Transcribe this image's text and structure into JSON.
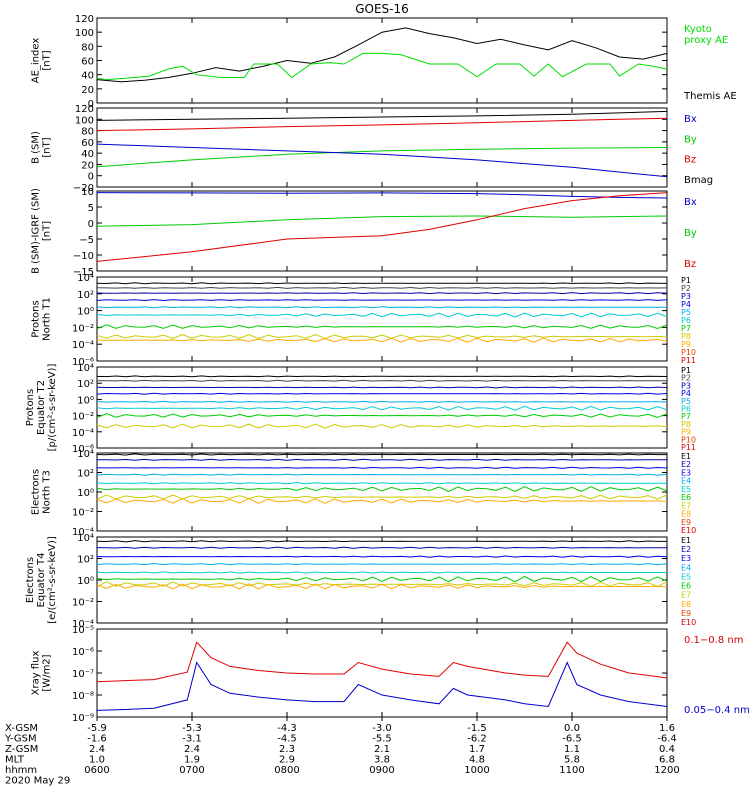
{
  "title": "GOES-16",
  "chart_data": [
    {
      "type": "line",
      "ylabel": "AE_index\n[nT]",
      "ylim": [
        0,
        120
      ],
      "yticks": [
        "0",
        "20",
        "40",
        "60",
        "80",
        "100",
        "120"
      ],
      "legend": [
        {
          "text": "Kyoto\nproxy AE",
          "color": "#00dd00"
        },
        {
          "text": "Themis AE",
          "color": "#000000"
        }
      ],
      "series": [
        {
          "name": "Themis AE",
          "color": "#000000",
          "x": [
            6.0,
            6.25,
            6.5,
            6.75,
            7.0,
            7.25,
            7.5,
            7.75,
            8.0,
            8.25,
            8.5,
            8.75,
            9.0,
            9.25,
            9.5,
            9.75,
            10.0,
            10.25,
            10.5,
            10.75,
            11.0,
            11.25,
            11.5,
            11.75,
            12.0
          ],
          "y": [
            33,
            30,
            32,
            36,
            42,
            50,
            45,
            52,
            60,
            56,
            65,
            82,
            100,
            106,
            98,
            92,
            84,
            90,
            82,
            75,
            88,
            78,
            65,
            62,
            70
          ]
        },
        {
          "name": "Kyoto proxy AE",
          "color": "#00dd00",
          "x": [
            6.0,
            6.1,
            6.3,
            6.55,
            6.75,
            6.9,
            7.05,
            7.3,
            7.55,
            7.65,
            7.9,
            8.05,
            8.25,
            8.45,
            8.6,
            8.8,
            9.0,
            9.2,
            9.5,
            9.8,
            10.0,
            10.2,
            10.45,
            10.6,
            10.75,
            10.9,
            11.15,
            11.4,
            11.5,
            11.7,
            11.85,
            12.0
          ],
          "y": [
            35,
            33,
            35,
            38,
            48,
            52,
            40,
            36,
            36,
            55,
            55,
            36,
            55,
            57,
            55,
            70,
            70,
            68,
            55,
            55,
            37,
            55,
            55,
            38,
            55,
            37,
            55,
            55,
            38,
            55,
            52,
            48
          ]
        }
      ]
    },
    {
      "type": "line",
      "ylabel": "B (SM)\n[nT]",
      "ylim": [
        -20,
        120
      ],
      "yticks": [
        "−20",
        "0",
        "20",
        "40",
        "60",
        "80",
        "100",
        "120"
      ],
      "legend": [
        {
          "text": "Bx",
          "color": "#0000cc"
        },
        {
          "text": "By",
          "color": "#00cc00"
        },
        {
          "text": "Bz",
          "color": "#dd0000"
        },
        {
          "text": "Bmag",
          "color": "#000000"
        }
      ],
      "series": [
        {
          "name": "Bmag",
          "color": "#000000",
          "x": [
            6,
            7,
            8,
            9,
            10,
            11,
            12
          ],
          "y": [
            98,
            100,
            102,
            104,
            106,
            109,
            114
          ]
        },
        {
          "name": "Bz",
          "color": "#dd0000",
          "x": [
            6,
            7,
            8,
            9,
            10,
            11,
            12
          ],
          "y": [
            80,
            83,
            87,
            90,
            94,
            98,
            102
          ]
        },
        {
          "name": "By",
          "color": "#00cc00",
          "x": [
            6,
            7,
            8,
            9,
            10,
            11,
            12
          ],
          "y": [
            16,
            28,
            38,
            44,
            47,
            49,
            50
          ]
        },
        {
          "name": "Bx",
          "color": "#0000cc",
          "x": [
            6,
            7,
            8,
            9,
            10,
            11,
            12
          ],
          "y": [
            56,
            50,
            44,
            38,
            28,
            15,
            -2
          ]
        }
      ]
    },
    {
      "type": "line",
      "ylabel": "B (SM)-IGRF (SM)\n[nT]",
      "ylim": [
        -15,
        10
      ],
      "yticks": [
        "−15",
        "−10",
        "−5",
        "0",
        "5",
        "10"
      ],
      "legend": [
        {
          "text": "Bx",
          "color": "#0000cc"
        },
        {
          "text": "By",
          "color": "#00cc00"
        },
        {
          "text": "Bz",
          "color": "#dd0000"
        }
      ],
      "series": [
        {
          "name": "Bx",
          "color": "#0000cc",
          "x": [
            6,
            7,
            8,
            9,
            10,
            10.5,
            11,
            11.5,
            12
          ],
          "y": [
            9.5,
            9.4,
            9.3,
            9.4,
            9.2,
            8.8,
            8.3,
            8.0,
            7.8
          ]
        },
        {
          "name": "By",
          "color": "#00cc00",
          "x": [
            6,
            7,
            8,
            9,
            10,
            11,
            12
          ],
          "y": [
            -1,
            -0.5,
            1,
            2,
            2.2,
            1.8,
            2.2
          ]
        },
        {
          "name": "Bz",
          "color": "#dd0000",
          "x": [
            6,
            7,
            8,
            9,
            9.5,
            10,
            10.5,
            11,
            11.5,
            12
          ],
          "y": [
            -12,
            -9,
            -5,
            -4,
            -2,
            1,
            4.5,
            7,
            8.5,
            9.5
          ]
        }
      ]
    },
    {
      "type": "line",
      "yscale": "log",
      "ylabel": "Protons\nNorth T1",
      "ylim": [
        1e-06,
        10000.0
      ],
      "yticks": [
        "10⁻⁶",
        "10⁻⁴",
        "10⁻²",
        "10⁰",
        "10²",
        "10⁴"
      ],
      "legend": [
        "P1",
        "P2",
        "P3",
        "P4",
        "P5",
        "P6",
        "P7",
        "P8",
        "P9",
        "P10",
        "P11"
      ],
      "legend_colors": [
        "#000000",
        "#444444",
        "#0000aa",
        "#0000ee",
        "#00aaee",
        "#00cccc",
        "#00cc00",
        "#cccc00",
        "#ffaa00",
        "#dd4400",
        "#dd0000"
      ],
      "levels": [
        1800,
        500,
        120,
        18,
        2.5,
        0.3,
        0.012,
        0.0008,
        0.0003
      ]
    },
    {
      "type": "line",
      "yscale": "log",
      "ylabel": "Protons\nEquator T2\n[p/(cm²-s-sr-keV)]",
      "ylim": [
        1e-06,
        10000.0
      ],
      "yticks": [
        "10⁻⁶",
        "10⁻⁴",
        "10⁻²",
        "10⁰",
        "10²",
        "10⁴"
      ],
      "legend": [
        "P1",
        "P2",
        "P3",
        "P4",
        "P5",
        "P6",
        "P7",
        "P8",
        "P9",
        "P10",
        "P11"
      ],
      "legend_colors": [
        "#000000",
        "#444444",
        "#0000aa",
        "#0000ee",
        "#00aaee",
        "#00cccc",
        "#00cc00",
        "#cccc00",
        "#ffaa00",
        "#dd4400",
        "#dd0000"
      ],
      "levels": [
        700,
        200,
        30,
        5,
        0.5,
        0.08,
        0.01,
        0.0005
      ]
    },
    {
      "type": "line",
      "yscale": "log",
      "ylabel": "Electrons\nNorth T3",
      "ylim": [
        0.0001,
        10000.0
      ],
      "yticks": [
        "10⁻⁴",
        "10⁻²",
        "10⁰",
        "10²",
        "10⁴"
      ],
      "legend": [
        "E1",
        "E2",
        "E3",
        "E4",
        "E5",
        "E6",
        "E7",
        "E8",
        "E9",
        "E10"
      ],
      "legend_colors": [
        "#000000",
        "#0000aa",
        "#0000ee",
        "#00aaee",
        "#00cccc",
        "#00cc00",
        "#cccc00",
        "#ffaa00",
        "#dd4400",
        "#dd0000"
      ],
      "levels": [
        7000,
        2000,
        300,
        60,
        8,
        2,
        0.3,
        0.12
      ]
    },
    {
      "type": "line",
      "yscale": "log",
      "ylabel": "Electrons\nEquator T4\n[e/(cm²-s-sr-keV)]",
      "ylim": [
        0.0001,
        10000.0
      ],
      "yticks": [
        "10⁻⁴",
        "10⁻²",
        "10⁰",
        "10²",
        "10⁴"
      ],
      "legend": [
        "E1",
        "E2",
        "E3",
        "E4",
        "E5",
        "E6",
        "E7",
        "E8",
        "E9",
        "E10"
      ],
      "legend_colors": [
        "#000000",
        "#0000aa",
        "#0000ee",
        "#00aaee",
        "#00cccc",
        "#00cc00",
        "#cccc00",
        "#ffaa00",
        "#dd4400",
        "#dd0000"
      ],
      "levels": [
        4000,
        1000,
        150,
        30,
        5,
        1.2,
        0.4,
        0.25
      ]
    },
    {
      "type": "line",
      "yscale": "log",
      "ylabel": "Xray flux\n[W/m2]",
      "ylim": [
        1e-09,
        1e-05
      ],
      "yticks": [
        "10⁻⁹",
        "10⁻⁸",
        "10⁻⁷",
        "10⁻⁶",
        "10⁻⁵"
      ],
      "legend": [
        {
          "text": "0.1−0.8 nm",
          "color": "#dd0000"
        },
        {
          "text": "0.05−0.4 nm",
          "color": "#0000cc"
        }
      ],
      "series": [
        {
          "name": "0.1−0.8 nm",
          "color": "#dd0000",
          "x": [
            6.0,
            6.3,
            6.6,
            6.95,
            7.05,
            7.2,
            7.4,
            7.7,
            8.0,
            8.3,
            8.6,
            8.75,
            9.0,
            9.3,
            9.6,
            9.75,
            9.9,
            10.3,
            10.5,
            10.75,
            10.95,
            11.05,
            11.3,
            11.6,
            12.0
          ],
          "y": [
            4e-08,
            4.5e-08,
            5e-08,
            1.1e-07,
            2.5e-06,
            5e-07,
            2e-07,
            1.3e-07,
            1e-07,
            9e-08,
            9e-08,
            3e-07,
            1.5e-07,
            9e-08,
            7e-08,
            3e-07,
            2e-07,
            1e-07,
            8e-08,
            7e-08,
            2.5e-06,
            8e-07,
            2.5e-07,
            1e-07,
            6e-08
          ]
        },
        {
          "name": "0.05−0.4 nm",
          "color": "#0000cc",
          "x": [
            6.0,
            6.3,
            6.6,
            6.95,
            7.05,
            7.2,
            7.4,
            7.7,
            8.0,
            8.3,
            8.6,
            8.75,
            9.0,
            9.3,
            9.6,
            9.75,
            9.9,
            10.3,
            10.5,
            10.75,
            10.95,
            11.05,
            11.3,
            11.6,
            12.0
          ],
          "y": [
            2e-09,
            2.2e-09,
            2.5e-09,
            6e-09,
            3e-07,
            3e-08,
            1.2e-08,
            8e-09,
            6e-09,
            5e-09,
            5e-09,
            3e-08,
            1e-08,
            6e-09,
            4e-09,
            2e-08,
            1e-08,
            6e-09,
            4e-09,
            3e-09,
            3e-07,
            3e-08,
            1e-08,
            5e-09,
            3e-09
          ]
        }
      ]
    }
  ],
  "x_axis": {
    "ticks": [
      "0600",
      "0700",
      "0800",
      "0900",
      "1000",
      "1100",
      "1200"
    ],
    "rows": [
      {
        "label": "X-GSM",
        "values": [
          "-5.9",
          "-5.3",
          "-4.3",
          "-3.0",
          "-1.5",
          "0.0",
          "1.6"
        ]
      },
      {
        "label": "Y-GSM",
        "values": [
          "-1.6",
          "-3.1",
          "-4.5",
          "-5.5",
          "-6.2",
          "-6.5",
          "-6.4"
        ]
      },
      {
        "label": "Z-GSM",
        "values": [
          "2.4",
          "2.4",
          "2.3",
          "2.1",
          "1.7",
          "1.1",
          "0.4"
        ]
      },
      {
        "label": "MLT",
        "values": [
          "1.0",
          "1.9",
          "2.9",
          "3.8",
          "4.8",
          "5.8",
          "6.8"
        ]
      },
      {
        "label": "hhmm",
        "values": [
          "0600",
          "0700",
          "0800",
          "0900",
          "1000",
          "1100",
          "1200"
        ]
      }
    ],
    "date": "2020 May 29"
  }
}
